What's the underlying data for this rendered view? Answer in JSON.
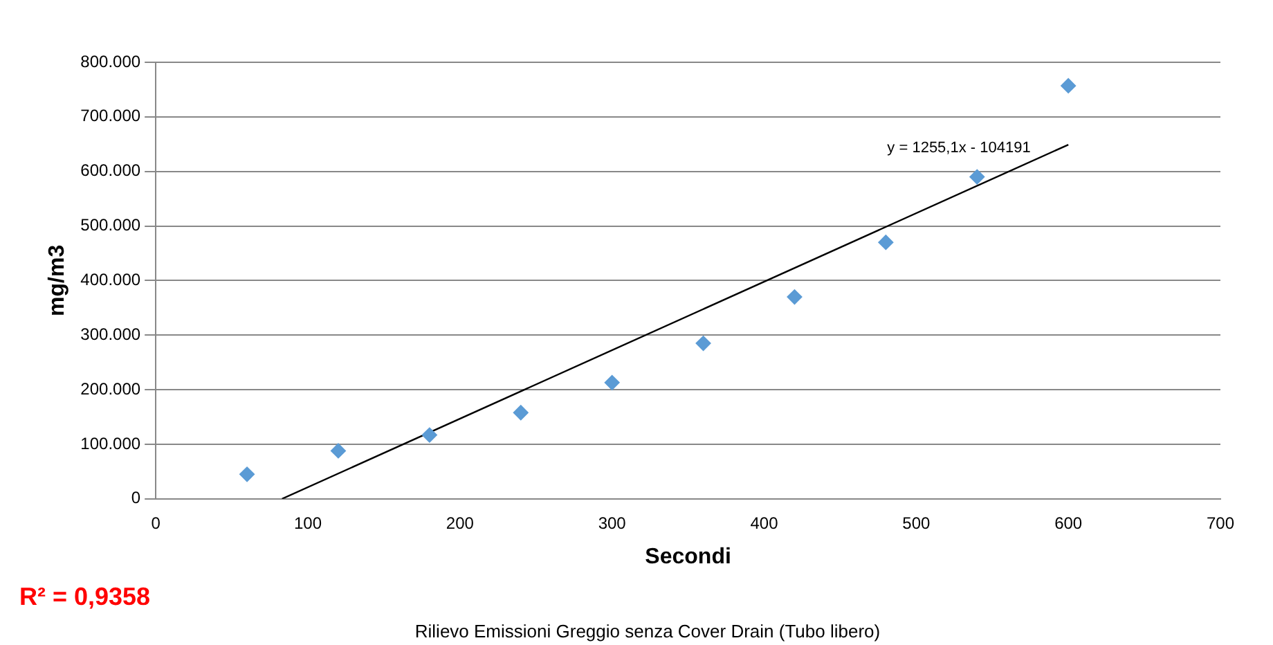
{
  "chart_data": {
    "type": "scatter",
    "xlabel": "Secondi",
    "ylabel": "mg/m3",
    "series": [
      {
        "color": "#5b9bd5",
        "marker": "diamond",
        "x": [
          60,
          120,
          180,
          240,
          300,
          360,
          420,
          480,
          540,
          600
        ],
        "values": [
          45000,
          88000,
          117000,
          158000,
          213000,
          285000,
          370000,
          470000,
          590000,
          757000
        ]
      },
      {
        "type": "line",
        "color": "#000000",
        "marker": "none",
        "x": [
          83,
          600
        ],
        "values": [
          0,
          649000
        ]
      }
    ],
    "xlim": [
      0,
      700
    ],
    "xticks": [
      0,
      100,
      200,
      300,
      400,
      500,
      600,
      700
    ],
    "ylim": [
      0,
      800000
    ],
    "yticks": [
      0,
      {
        "value": 100000,
        "label": "100.000"
      },
      {
        "value": 200000,
        "label": "200.000"
      },
      {
        "value": 300000,
        "label": "300.000"
      },
      {
        "value": 400000,
        "label": "400.000"
      },
      {
        "value": 500000,
        "label": "500.000"
      },
      {
        "value": 600000,
        "label": "600.000"
      },
      {
        "value": 700000,
        "label": "700.000"
      },
      {
        "value": 800000,
        "label": "800.000"
      }
    ],
    "grid": "y",
    "legend": false,
    "annotations": [
      "y = 1255,1x - 104191",
      "R² = 0,9358",
      "Rilievo Emissioni Greggio senza Cover Drain (Tubo libero)"
    ]
  }
}
